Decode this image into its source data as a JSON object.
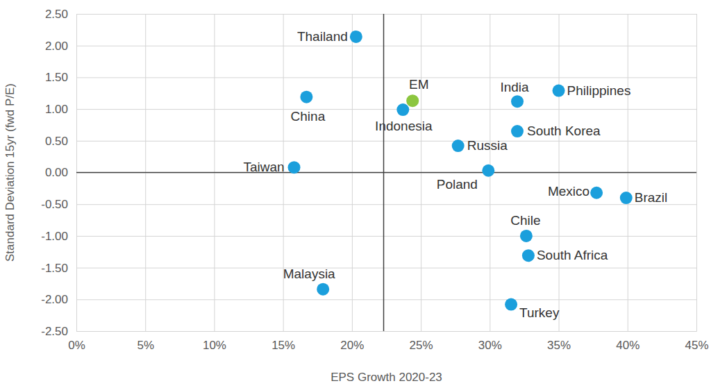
{
  "chart_data": {
    "type": "scatter",
    "x_label": "EPS Growth 2020-23",
    "y_label": "Standard Deviation 15yr (fwd P/E)",
    "labels": [
      "Thailand",
      "China",
      "Taiwan",
      "Malaysia",
      "Indonesia",
      "EM",
      "India",
      "Philippines",
      "South Korea",
      "Russia",
      "Poland",
      "Mexico",
      "Brazil",
      "Chile",
      "South Africa",
      "Turkey"
    ],
    "x": [
      20.3,
      16.7,
      15.8,
      17.9,
      23.7,
      24.4,
      32.0,
      35.0,
      32.0,
      27.7,
      29.9,
      37.75,
      39.9,
      32.65,
      32.8,
      31.55
    ],
    "y": [
      2.14,
      1.19,
      0.08,
      -1.84,
      0.99,
      1.13,
      1.12,
      1.29,
      0.65,
      0.42,
      0.03,
      -0.32,
      -0.4,
      -1.0,
      -1.31,
      -2.08
    ],
    "colors": [
      "#1b9fdc",
      "#1b9fdc",
      "#1b9fdc",
      "#1b9fdc",
      "#1b9fdc",
      "#8cc63f",
      "#1b9fdc",
      "#1b9fdc",
      "#1b9fdc",
      "#1b9fdc",
      "#1b9fdc",
      "#1b9fdc",
      "#1b9fdc",
      "#1b9fdc",
      "#1b9fdc",
      "#1b9fdc"
    ],
    "marker": "circle",
    "xlim": [
      0,
      45
    ],
    "xticks": [
      {
        "value": 0,
        "label": "0%"
      },
      {
        "value": 5,
        "label": "5%"
      },
      {
        "value": 10,
        "label": "10%"
      },
      {
        "value": 15,
        "label": "15%"
      },
      {
        "value": 20,
        "label": "20%"
      },
      {
        "value": 25,
        "label": "25%"
      },
      {
        "value": 30,
        "label": "30%"
      },
      {
        "value": 35,
        "label": "35%"
      },
      {
        "value": 40,
        "label": "40%"
      },
      {
        "value": 45,
        "label": "45%"
      }
    ],
    "ylim": [
      -2.5,
      2.5
    ],
    "yticks": [
      {
        "value": -2.5,
        "label": "-2.50"
      },
      {
        "value": -2,
        "label": "-2.00"
      },
      {
        "value": -1.5,
        "label": "-1.50"
      },
      {
        "value": -1,
        "label": "-1.00"
      },
      {
        "value": -0.5,
        "label": "-0.50"
      },
      {
        "value": 0,
        "label": "0.00"
      },
      {
        "value": 0.5,
        "label": "0.50"
      },
      {
        "value": 1,
        "label": "1.00"
      },
      {
        "value": 1.5,
        "label": "1.50"
      },
      {
        "value": 2,
        "label": "2.00"
      },
      {
        "value": 2.5,
        "label": "2.50"
      }
    ],
    "grid": true,
    "reference_lines": {
      "x": 22.3,
      "y": 0
    }
  }
}
